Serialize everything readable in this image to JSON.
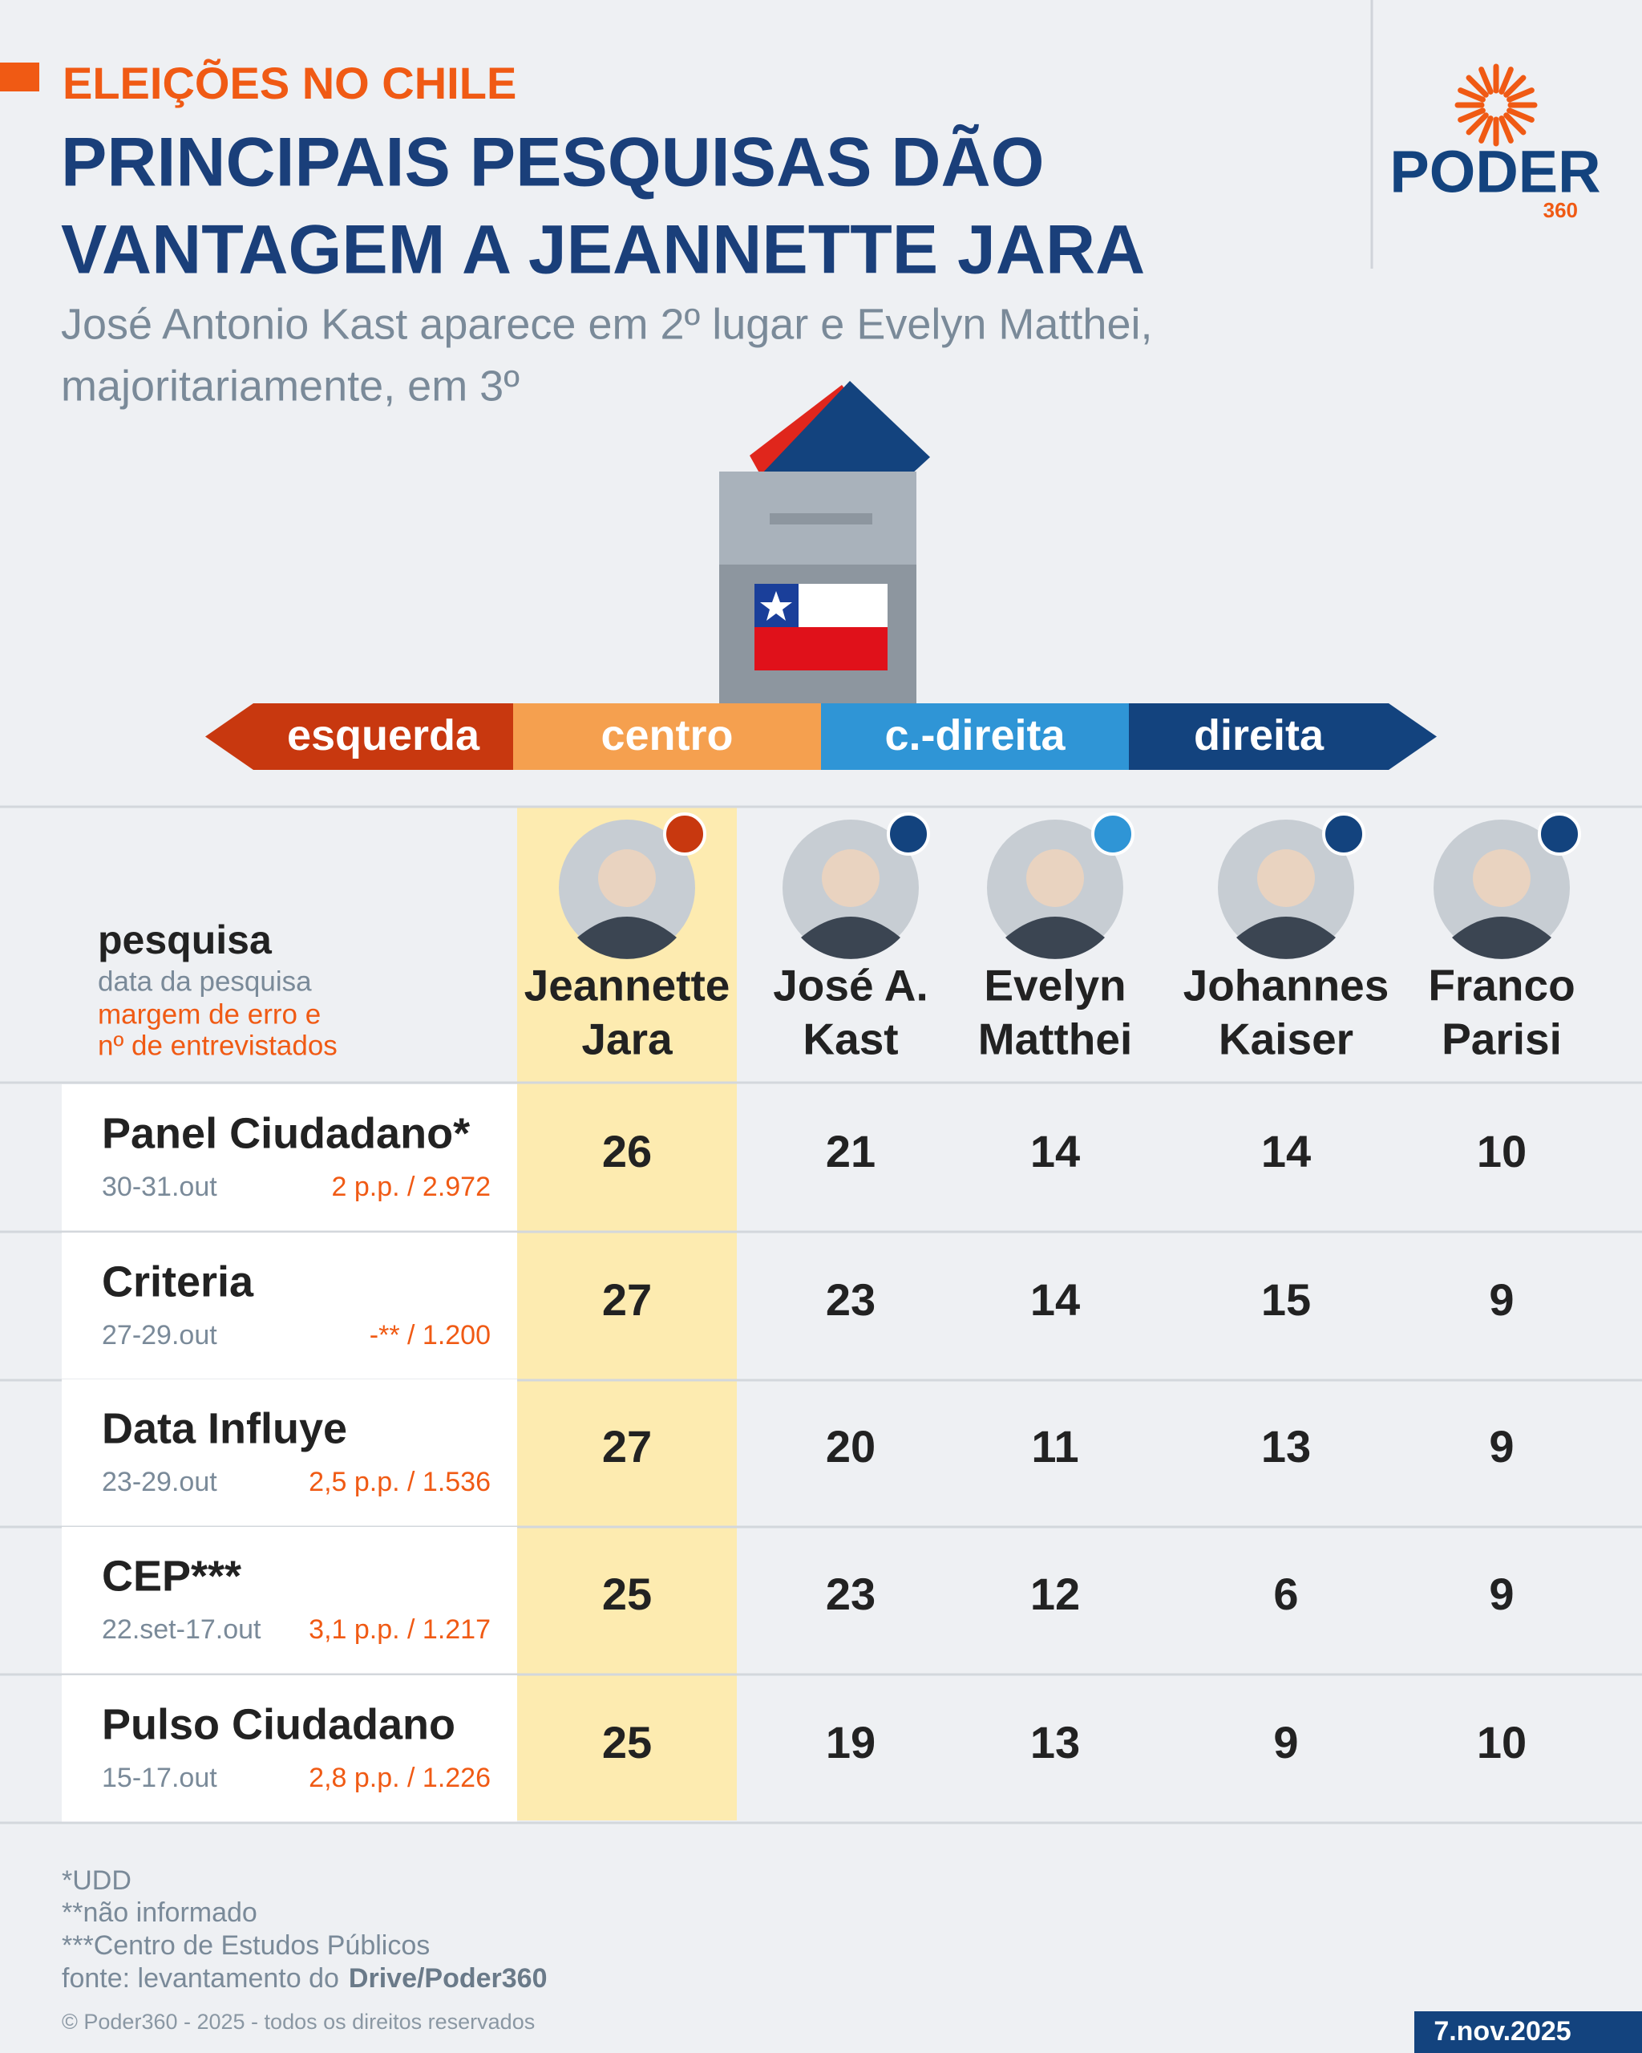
{
  "header": {
    "kicker": "ELEIÇÕES NO CHILE",
    "title": [
      "PRINCIPAIS PESQUISAS DÃO",
      "VANTAGEM A JEANNETTE JARA"
    ],
    "subtitle": [
      "José Antonio Kast aparece em 2º lugar e Evelyn Matthei,",
      "majoritariamente, em 3º"
    ]
  },
  "logo": {
    "name": "PODER",
    "number": "360"
  },
  "spectrum": [
    {
      "label": "esquerda",
      "color": "#c8380f"
    },
    {
      "label": "centro",
      "color": "#f5a04f"
    },
    {
      "label": "c.-direita",
      "color": "#2f95d6"
    },
    {
      "label": "direita",
      "color": "#13437e"
    }
  ],
  "table": {
    "legend": {
      "poll": "pesquisa",
      "date": "data da pesquisa",
      "margin": [
        "margem de erro e",
        "nº de entrevistados"
      ]
    },
    "candidates": [
      {
        "name": [
          "Jeannette",
          "Jara"
        ],
        "color": "#c8380f"
      },
      {
        "name": [
          "José A.",
          "Kast"
        ],
        "color": "#13437e"
      },
      {
        "name": [
          "Evelyn",
          "Matthei"
        ],
        "color": "#2f95d6"
      },
      {
        "name": [
          "Johannes",
          "Kaiser"
        ],
        "color": "#13437e"
      },
      {
        "name": [
          "Franco",
          "Parisi"
        ],
        "color": "#13437e"
      }
    ],
    "rows": [
      {
        "poll": "Panel Ciudadano*",
        "date": "30-31.out",
        "margin": "2 p.p. / 2.972",
        "values": [
          26,
          21,
          14,
          14,
          10
        ]
      },
      {
        "poll": "Criteria",
        "date": "27-29.out",
        "margin": "-** / 1.200",
        "values": [
          27,
          23,
          14,
          15,
          9
        ]
      },
      {
        "poll": "Data Influye",
        "date": "23-29.out",
        "margin": "2,5 p.p. / 1.536",
        "values": [
          27,
          20,
          11,
          13,
          9
        ]
      },
      {
        "poll": "CEP***",
        "date": "22.set-17.out",
        "margin": "3,1 p.p. / 1.217",
        "values": [
          25,
          23,
          12,
          6,
          9
        ]
      },
      {
        "poll": "Pulso Ciudadano",
        "date": "15-17.out",
        "margin": "2,8 p.p. / 1.226",
        "values": [
          25,
          19,
          13,
          9,
          10
        ]
      }
    ]
  },
  "notes": [
    "*UDD",
    "**não informado",
    "***Centro de Estudos Públicos"
  ],
  "source": {
    "text": "fonte: levantamento do",
    "bold": "Drive/Poder360"
  },
  "copyright": "© Poder360 - 2025 - todos os direitos reservados",
  "date": "7.nov.2025"
}
